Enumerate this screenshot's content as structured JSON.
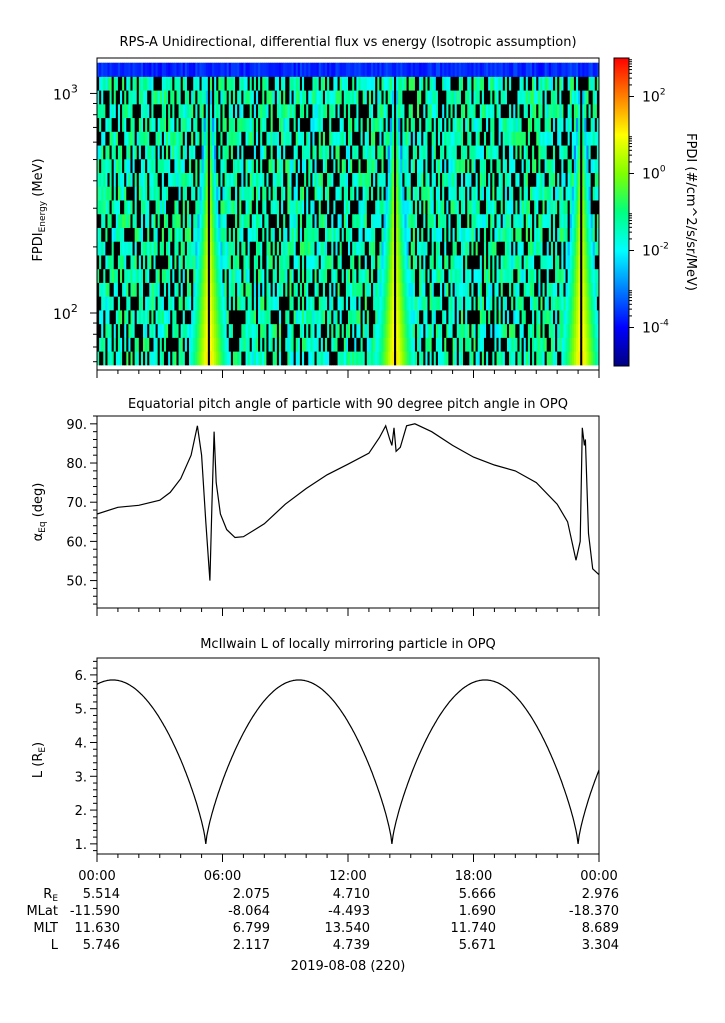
{
  "chart_data": [
    {
      "type": "heatmap",
      "title": "RPS-A Unidirectional, differential flux vs energy (Isotropic assumption)",
      "ylabel": "FPDI",
      "ylabel_sub": "Energy",
      "ylabel_unit": "(MeV)",
      "yscale": "log",
      "ylim": [
        55,
        1450
      ],
      "y_ticks": [
        {
          "value": 100,
          "mant": "10",
          "exp": "2"
        },
        {
          "value": 1000,
          "mant": "10",
          "exp": "3"
        }
      ],
      "x_range_hours": [
        0,
        24
      ],
      "colorbar": {
        "label": "FPDI (#/cm^2/s/sr/MeV)",
        "log_range": [
          -5,
          3
        ],
        "ticks": [
          {
            "mant": "10",
            "exp": "2",
            "log": 2
          },
          {
            "mant": "10",
            "exp": "0",
            "log": 0
          },
          {
            "mant": "10",
            "exp": "-2",
            "log": -2
          },
          {
            "mant": "10",
            "exp": "-4",
            "log": -4
          }
        ],
        "colors": [
          "#000080",
          "#0000ff",
          "#0080ff",
          "#00ffff",
          "#00ff80",
          "#80ff00",
          "#ffff00",
          "#ff8000",
          "#ff0000"
        ]
      },
      "flux_peaks_hours": [
        5.3,
        14.2,
        23.1
      ]
    },
    {
      "type": "line",
      "title": "Equatorial pitch angle of particle with 90 degree pitch angle in OPQ",
      "ylabel": "α",
      "ylabel_sub": "Eq",
      "ylabel_unit": "(deg)",
      "ylim": [
        43,
        92
      ],
      "yticks": [
        50,
        60,
        70,
        80,
        90
      ],
      "ytick_labels": [
        "50.",
        "60.",
        "70.",
        "80.",
        "90."
      ],
      "x": [
        0,
        1,
        2,
        3,
        3.5,
        4,
        4.5,
        4.8,
        5.0,
        5.2,
        5.4,
        5.5,
        5.6,
        5.7,
        5.9,
        6.2,
        6.6,
        7,
        8,
        9,
        10,
        11,
        12,
        13,
        13.5,
        13.8,
        14.0,
        14.1,
        14.2,
        14.3,
        14.5,
        14.8,
        15.2,
        16,
        17,
        18,
        19,
        20,
        21,
        22,
        22.5,
        22.9,
        23.1,
        23.2,
        23.3,
        23.35,
        23.5,
        23.7,
        24
      ],
      "y": [
        67,
        68.7,
        69.2,
        70.5,
        72.5,
        76,
        82,
        89.5,
        82,
        65,
        50,
        70,
        88,
        75,
        67,
        63,
        61,
        61.2,
        64.5,
        69.5,
        73.5,
        77,
        79.7,
        82.5,
        86.5,
        89.5,
        86,
        84.5,
        89,
        83,
        84,
        89.5,
        90,
        88,
        84.5,
        81.5,
        79.5,
        78,
        75,
        69.5,
        65,
        55.2,
        60,
        89,
        84.5,
        86,
        62,
        53,
        51.5
      ]
    },
    {
      "type": "line",
      "title": "McIlwain L of locally mirroring particle in OPQ",
      "ylabel": "L",
      "ylabel_unit": "(R",
      "ylabel_unit_sub": "E",
      "ylabel_close": ")",
      "ylim": [
        0.7,
        6.5
      ],
      "yticks": [
        1,
        2,
        3,
        4,
        5,
        6
      ],
      "ytick_labels": [
        "1.",
        "2.",
        "3.",
        "4.",
        "5.",
        "6."
      ],
      "model": {
        "period_hours": 8.9,
        "min_at_hours": [
          5.2,
          14.1,
          23.0
        ],
        "max_L": 5.85,
        "min_L": 1.0
      }
    }
  ],
  "x_axis": {
    "tick_labels": [
      "00:00",
      "06:00",
      "12:00",
      "18:00",
      "00:00"
    ],
    "tick_hours": [
      0,
      6,
      12,
      18,
      24
    ],
    "date_label": "2019-08-08 (220)"
  },
  "ephemeris": {
    "row_labels": [
      {
        "main": "R",
        "sub": "E"
      },
      {
        "main": "MLat",
        "sub": ""
      },
      {
        "main": "MLT",
        "sub": ""
      },
      {
        "main": "L",
        "sub": ""
      }
    ],
    "values": [
      [
        "5.514",
        "2.075",
        "4.710",
        "5.666",
        "2.976"
      ],
      [
        "-11.590",
        "-8.064",
        "-4.493",
        "1.690",
        "-18.370"
      ],
      [
        "11.630",
        "6.799",
        "13.540",
        "11.740",
        "8.689"
      ],
      [
        "5.746",
        "2.117",
        "4.739",
        "5.671",
        "3.304"
      ]
    ]
  }
}
